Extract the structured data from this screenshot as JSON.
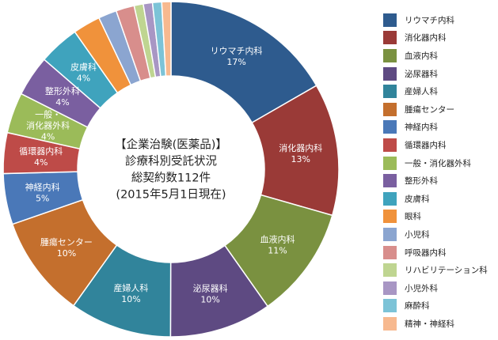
{
  "chart_data": {
    "type": "pie",
    "title_lines": [
      "【企業治験(医薬品)】",
      "診療科別受託状況",
      "総契約数112件",
      "(2015年5月1日現在)"
    ],
    "slices": [
      {
        "label": "リウマチ内科",
        "percent_label": "17%",
        "value": 17,
        "chart_label_lines": [
          "リウマチ内科",
          "17%"
        ],
        "color": "#2e5b8e"
      },
      {
        "label": "消化器内科",
        "percent_label": "13%",
        "value": 13,
        "chart_label_lines": [
          "消化器内科",
          "13%"
        ],
        "color": "#9a3a37"
      },
      {
        "label": "血液内科",
        "percent_label": "11%",
        "value": 11,
        "chart_label_lines": [
          "血液内科",
          "11%"
        ],
        "color": "#7a9140"
      },
      {
        "label": "泌尿器科",
        "percent_label": "10%",
        "value": 10,
        "chart_label_lines": [
          "泌尿器科",
          "10%"
        ],
        "color": "#5e4a82"
      },
      {
        "label": "産婦人科",
        "percent_label": "10%",
        "value": 10,
        "chart_label_lines": [
          "産婦人科",
          "10%"
        ],
        "color": "#31849b"
      },
      {
        "label": "腫瘍センター",
        "percent_label": "10%",
        "value": 10,
        "chart_label_lines": [
          "腫瘍センター",
          "10%"
        ],
        "color": "#c46f2d"
      },
      {
        "label": "神経内科",
        "percent_label": "5%",
        "value": 5,
        "chart_label_lines": [
          "神経内科",
          "5%"
        ],
        "color": "#4a78b8"
      },
      {
        "label": "循環器内科",
        "percent_label": "4%",
        "value": 4,
        "chart_label_lines": [
          "循環器内科",
          "4%"
        ],
        "color": "#be4b48"
      },
      {
        "label": "一般・消化器外科",
        "percent_label": "4%",
        "value": 4,
        "chart_label_lines": [
          "一般・",
          "消化器外科",
          "4%"
        ],
        "color": "#9bbb59"
      },
      {
        "label": "整形外科",
        "percent_label": "4%",
        "value": 4,
        "chart_label_lines": [
          "整形外科",
          "4%"
        ],
        "color": "#7a5fa0"
      },
      {
        "label": "皮膚科",
        "percent_label": "4%",
        "value": 4,
        "chart_label_lines": [
          "皮膚科",
          "4%"
        ],
        "color": "#3fa3bd"
      },
      {
        "label": "眼科",
        "percent_label": "",
        "value": 2.7,
        "chart_label_lines": [],
        "color": "#f0923b"
      },
      {
        "label": "小児科",
        "percent_label": "",
        "value": 1.8,
        "chart_label_lines": [],
        "color": "#8ba5d0"
      },
      {
        "label": "呼吸器内科",
        "percent_label": "",
        "value": 1.8,
        "chart_label_lines": [],
        "color": "#d88e8c"
      },
      {
        "label": "リハビリテーション科",
        "percent_label": "",
        "value": 0.9,
        "chart_label_lines": [],
        "color": "#bfd591"
      },
      {
        "label": "小児外科",
        "percent_label": "",
        "value": 0.9,
        "chart_label_lines": [],
        "color": "#a896c4"
      },
      {
        "label": "麻酔科",
        "percent_label": "",
        "value": 0.9,
        "chart_label_lines": [],
        "color": "#7cc3d7"
      },
      {
        "label": "精神・神経科",
        "percent_label": "",
        "value": 0.9,
        "chart_label_lines": [],
        "color": "#f7b98f"
      }
    ],
    "legend_position": "right"
  }
}
